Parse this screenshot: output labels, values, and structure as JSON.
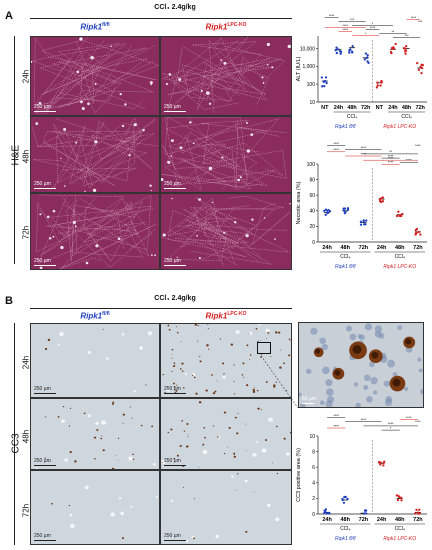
{
  "panel_a": {
    "letter": "A",
    "condition": "CCl₄ 2.4g/kg",
    "stain": "H&E",
    "genotype_left": {
      "name": "Ripk1",
      "sup": "fl/fl"
    },
    "genotype_right": {
      "name": "Ripk1",
      "sup": "LPC-KO"
    },
    "rows": [
      "24h",
      "48h",
      "72h"
    ],
    "scale_label": "250 µm"
  },
  "panel_b": {
    "letter": "B",
    "condition": "CCl₄ 2.4g/kg",
    "stain": "CC3",
    "genotype_left": {
      "name": "Ripk1",
      "sup": "fl/fl"
    },
    "genotype_right": {
      "name": "Ripk1",
      "sup": "LPC-KO"
    },
    "rows": [
      "24h",
      "48h",
      "72h"
    ],
    "scale_label": "250 µm",
    "zoom_scale_label": "50 µm"
  },
  "colors": {
    "fl": "#1f3fbf",
    "ko": "#d41f1f",
    "he": "#8a2d5e",
    "cc3": "#cfd7de"
  },
  "chart_data": [
    {
      "type": "scatter",
      "ylabel": "ALT (IU/L)",
      "yscale": "log",
      "yticks": [
        "10",
        "100",
        "1,000",
        "10,000"
      ],
      "categories": [
        "NT",
        "24h",
        "48h",
        "72h",
        "NT",
        "24h",
        "48h",
        "72h"
      ],
      "group_labels": [
        "CCl₄",
        "CCl₄"
      ],
      "genotype_labels": [
        "Ripk1 fl/fl",
        "Ripk1 LPC-KO"
      ],
      "sig_labels": [
        "****",
        "***",
        "*",
        "****",
        "**",
        "***",
        "****",
        "***",
        "****",
        "****",
        "*"
      ],
      "series": [
        {
          "name": "Ripk1 fl/fl",
          "color": "#1f3fbf",
          "values": [
            150,
            9000,
            11000,
            3000
          ]
        },
        {
          "name": "Ripk1 LPC-KO",
          "color": "#d41f1f",
          "values": [
            120,
            9000,
            10000,
            800
          ]
        }
      ]
    },
    {
      "type": "scatter",
      "ylabel": "Necrotic area (%)",
      "ylim": [
        0,
        100
      ],
      "yticks": [
        "0",
        "20",
        "40",
        "60",
        "80",
        "100"
      ],
      "categories": [
        "24h",
        "48h",
        "72h",
        "24h",
        "48h",
        "72h"
      ],
      "group_labels": [
        "CCl₄",
        "CCl₄"
      ],
      "genotype_labels": [
        "Ripk1 fl/fl",
        "Ripk1 LPC-KO"
      ],
      "sig_labels": [
        "****",
        "****",
        "**",
        "****",
        "****",
        "****",
        "****",
        "****",
        "****",
        "****"
      ],
      "series": [
        {
          "name": "Ripk1 fl/fl",
          "color": "#1f3fbf",
          "values": [
            38,
            40,
            25
          ]
        },
        {
          "name": "Ripk1 LPC-KO",
          "color": "#d41f1f",
          "values": [
            55,
            35,
            13
          ]
        }
      ]
    },
    {
      "type": "scatter",
      "ylabel": "CC3 positive area (%)",
      "ylim": [
        0,
        10
      ],
      "yticks": [
        "0",
        "2",
        "4",
        "6",
        "8",
        "10"
      ],
      "categories": [
        "24h",
        "48h",
        "72h",
        "24h",
        "48h",
        "72h"
      ],
      "group_labels": [
        "CCl₄",
        "CCl₄"
      ],
      "genotype_labels": [
        "Ripk1 fl/fl",
        "Ripk1 LPC-KO"
      ],
      "sig_labels": [
        "****",
        "****",
        "****",
        "*",
        "****",
        "****",
        "****"
      ],
      "series": [
        {
          "name": "Ripk1 fl/fl",
          "color": "#1f3fbf",
          "values": [
            0.2,
            1.8,
            0.1
          ]
        },
        {
          "name": "Ripk1 LPC-KO",
          "color": "#d41f1f",
          "values": [
            6.5,
            2.0,
            0.2
          ]
        }
      ]
    }
  ]
}
